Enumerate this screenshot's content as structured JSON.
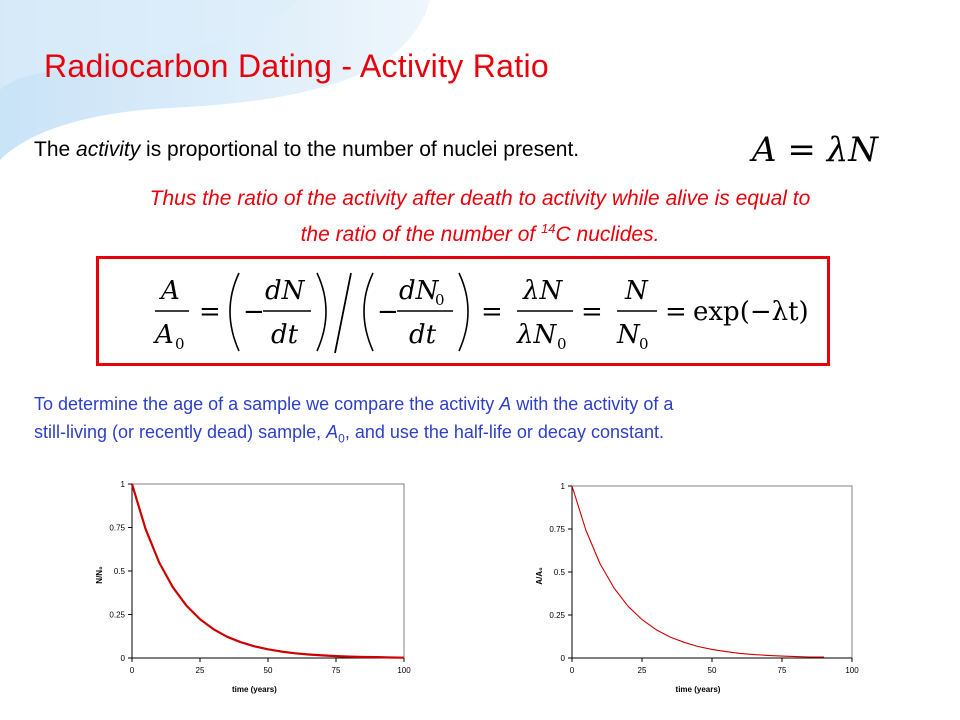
{
  "slide": {
    "title": "Radiocarbon Dating - Activity Ratio",
    "line1_before": "The ",
    "line1_em": "activity",
    "line1_after": " is proportional to the number of nuclei present.",
    "activity_eq": {
      "lhs": "A",
      "eq": "=",
      "rhs": "λN"
    },
    "thus_line1": "Thus the ratio of the activity after death to activity while alive is equal to",
    "thus_line2_a": "the ratio of the number of ",
    "thus_line2_sup": "14",
    "thus_line2_b": "C nuclides.",
    "formula": {
      "f1_num": "A",
      "f1_den": "A",
      "f1_den_sub": "0",
      "f2_num": "dN",
      "f2_den": "dt",
      "f3_num": "dN",
      "f3_num_sub": "0",
      "f3_den": "dt",
      "f4_num": "λN",
      "f4_den": "λN",
      "f4_den_sub": "0",
      "f5_num": "N",
      "f5_den": "N",
      "f5_den_sub": "0",
      "tail": "exp(−λt)"
    },
    "detail_1": "To determine the age of a sample we compare the activity ",
    "detail_A": "A",
    "detail_2": " with the activity of a",
    "detail_3": "still-living (or recently dead) sample, ",
    "detail_A0": "A",
    "detail_A0_sub": "0",
    "detail_4": ", and use the half-life or decay constant.",
    "accent_color": "#e8000b",
    "text_blue": "#2d3fc8"
  },
  "chart_data": [
    {
      "type": "line",
      "title": "",
      "xlabel": "time (years)",
      "ylabel": "N/N₀",
      "xlim": [
        0,
        100
      ],
      "ylim": [
        0,
        1
      ],
      "xticks": [
        "0",
        "25",
        "50",
        "75",
        "100"
      ],
      "yticks": [
        "0",
        "0.25",
        "0.5",
        "0.75",
        "1"
      ],
      "series": [
        {
          "x": [
            0,
            5,
            10,
            15,
            20,
            25,
            30,
            35,
            40,
            45,
            50,
            55,
            60,
            65,
            70,
            75,
            80,
            85,
            90,
            95,
            100
          ],
          "values": [
            1.0,
            0.741,
            0.549,
            0.407,
            0.301,
            0.223,
            0.165,
            0.122,
            0.091,
            0.067,
            0.05,
            0.037,
            0.027,
            0.02,
            0.015,
            0.011,
            0.008,
            0.006,
            0.005,
            0.003,
            0.002
          ],
          "color": "#cc0000"
        }
      ]
    },
    {
      "type": "line",
      "title": "",
      "xlabel": "time (years)",
      "ylabel": "A/A₀",
      "xlim": [
        0,
        100
      ],
      "ylim": [
        0,
        1
      ],
      "xticks": [
        "0",
        "25",
        "50",
        "75",
        "100"
      ],
      "yticks": [
        "0",
        "0.25",
        "0.5",
        "0.75",
        "1"
      ],
      "series": [
        {
          "x": [
            0,
            5,
            10,
            15,
            20,
            25,
            30,
            35,
            40,
            45,
            50,
            55,
            60,
            65,
            70,
            75,
            80,
            85,
            90
          ],
          "values": [
            1.0,
            0.741,
            0.549,
            0.407,
            0.301,
            0.223,
            0.165,
            0.122,
            0.091,
            0.067,
            0.05,
            0.037,
            0.027,
            0.02,
            0.015,
            0.011,
            0.008,
            0.006,
            0.005
          ],
          "color": "#cc0000"
        }
      ]
    }
  ]
}
